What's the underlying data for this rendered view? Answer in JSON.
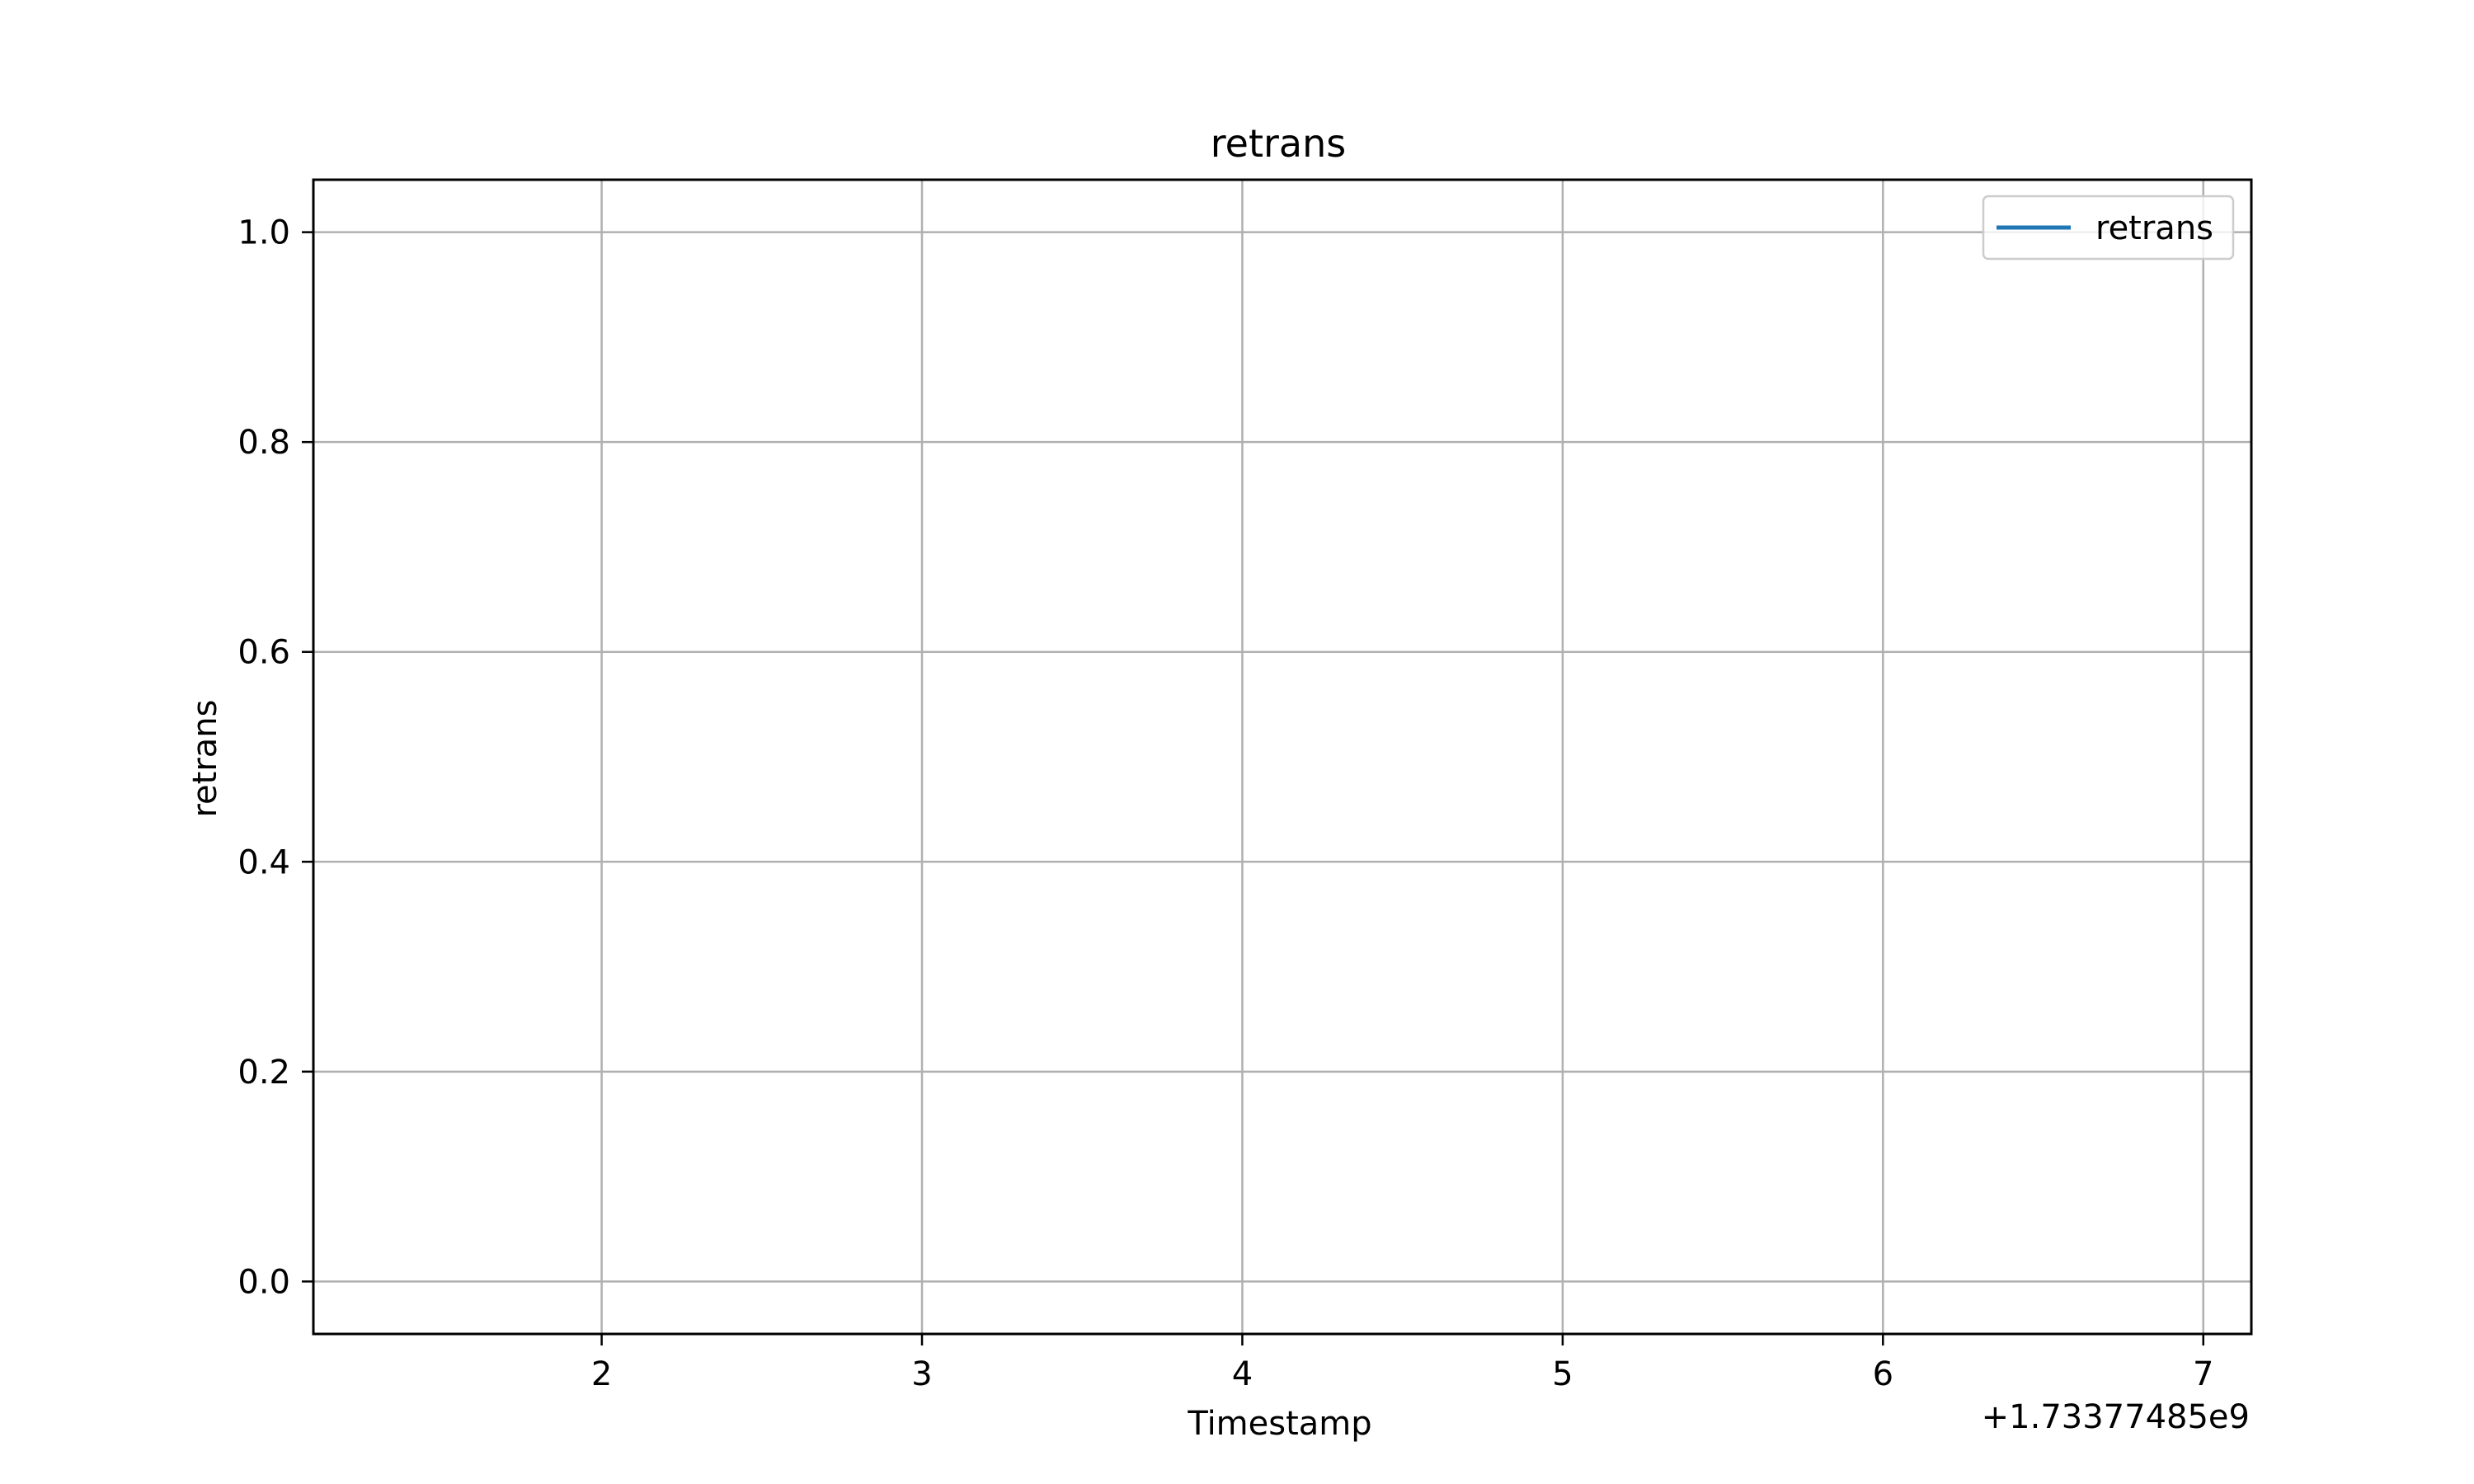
{
  "chart_data": {
    "type": "line",
    "title": "retrans",
    "xlabel": "Timestamp",
    "ylabel": "retrans",
    "x_offset_label": "+1.73377485e9",
    "xlim": [
      1.1,
      7.15
    ],
    "ylim": [
      -0.05,
      1.05
    ],
    "x_ticks": [
      2,
      3,
      4,
      5,
      6,
      7
    ],
    "x_tick_labels": [
      "2",
      "3",
      "4",
      "5",
      "6",
      "7"
    ],
    "y_ticks": [
      0.0,
      0.2,
      0.4,
      0.6,
      0.8,
      1.0
    ],
    "y_tick_labels": [
      "0.0",
      "0.2",
      "0.4",
      "0.6",
      "0.8",
      "1.0"
    ],
    "grid": true,
    "legend_position": "top-right",
    "series": [
      {
        "name": "retrans",
        "color": "#1f77b4",
        "x": [],
        "y": []
      }
    ]
  }
}
